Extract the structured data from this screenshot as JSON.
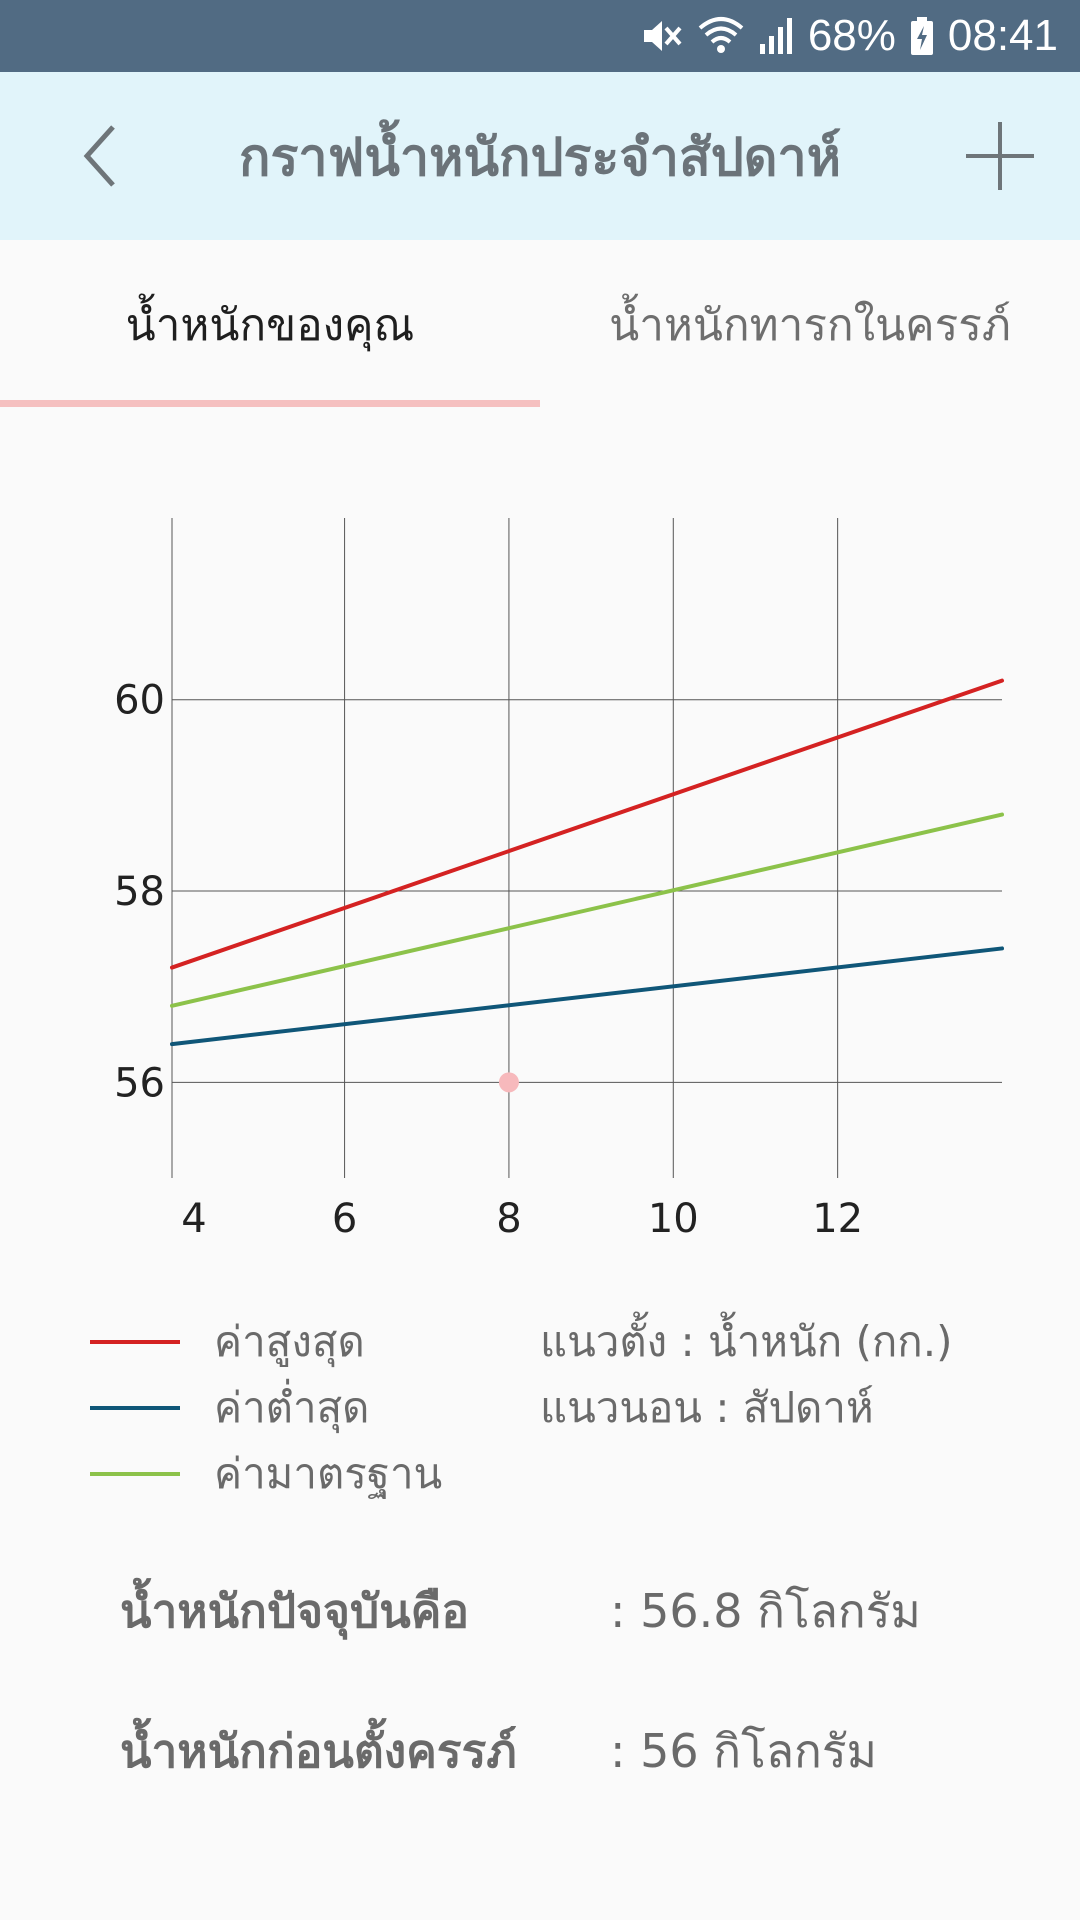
{
  "status_bar": {
    "battery": "68%",
    "time": "08:41",
    "icons": [
      "mute-icon",
      "wifi-icon",
      "signal-icon",
      "battery-charging-icon"
    ]
  },
  "app_bar": {
    "title": "กราฟน้ำหนักประจำสัปดาห์",
    "back_icon": "chevron-left-icon",
    "add_icon": "plus-icon",
    "background": "#e1f4fa"
  },
  "tabs": [
    {
      "label": "น้ำหนักของคุณ",
      "active": true
    },
    {
      "label": "น้ำหนักทารกในครรภ์",
      "active": false
    }
  ],
  "tab_indicator_color": "#f5c0c0",
  "chart_data": {
    "type": "line",
    "x": [
      3.9,
      14
    ],
    "series": [
      {
        "name": "ค่าสูงสุด",
        "color": "#d42222",
        "values": [
          57.2,
          60.2
        ]
      },
      {
        "name": "ค่าต่ำสุด",
        "color": "#0f5678",
        "values": [
          56.4,
          57.4
        ]
      },
      {
        "name": "ค่ามาตรฐาน",
        "color": "#8cc24a",
        "values": [
          56.8,
          58.8
        ]
      }
    ],
    "points": [
      {
        "x": 8,
        "y": 56,
        "color": "#f7b9bc"
      }
    ],
    "x_ticks": [
      4,
      6,
      8,
      10,
      12
    ],
    "y_ticks": [
      56,
      58,
      60
    ],
    "x_gridlines": [
      3.9,
      6,
      8,
      10,
      12
    ],
    "y_gridlines": [
      56,
      58,
      60
    ],
    "xlim": [
      3.9,
      14
    ],
    "ylim": [
      55,
      61.9
    ],
    "grid": true
  },
  "legend": {
    "items": [
      "ค่าสูงสุด",
      "ค่าต่ำสุด",
      "ค่ามาตรฐาน"
    ],
    "vertical_axis": "แนวตั้ง : น้ำหนัก (กก.)",
    "horizontal_axis": "แนวนอน : สัปดาห์"
  },
  "info": {
    "current_weight_label": "น้ำหนักปัจจุบันคือ",
    "current_weight_value": ": 56.8  กิโลกรัม",
    "pre_pregnancy_label": "น้ำหนักก่อนตั้งครรภ์",
    "pre_pregnancy_value": ": 56  กิโลกรัม"
  }
}
